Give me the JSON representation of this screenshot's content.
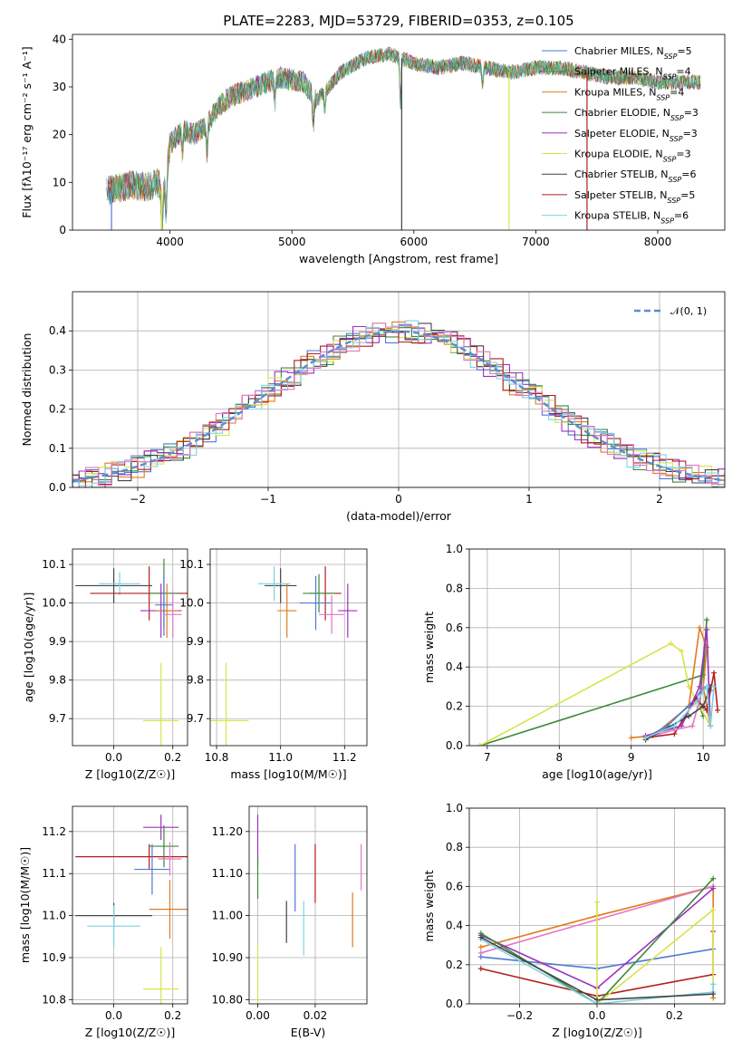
{
  "figure": {
    "title": "PLATE=2283, MJD=53729, FIBERID=0353, z=0.105"
  },
  "chart_data": [
    {
      "id": "spectrum",
      "type": "line",
      "xlabel": "wavelength [Angstrom, rest frame]",
      "ylabel": "Flux [fλ10⁻¹⁷ erg cm⁻² s⁻¹ A⁻¹]",
      "xlim": [
        3200,
        8550
      ],
      "ylim": [
        0,
        41
      ],
      "xticks": [
        4000,
        5000,
        6000,
        7000,
        8000
      ],
      "yticks": [
        0,
        10,
        20,
        30,
        40
      ],
      "grid": false,
      "legend_placement": "right",
      "continuum": {
        "x": [
          3480,
          3600,
          3700,
          3800,
          3900,
          3950,
          4000,
          4100,
          4200,
          4300,
          4400,
          4500,
          4700,
          4900,
          5100,
          5200,
          5400,
          5600,
          5800,
          5900,
          6000,
          6200,
          6400,
          6600,
          6800,
          7000,
          7200,
          7400,
          7600,
          7800,
          8000,
          8200,
          8350
        ],
        "y": [
          8,
          9,
          9.5,
          9,
          10,
          8,
          18,
          21,
          20,
          22,
          26,
          28,
          30,
          32,
          31,
          27,
          33,
          36,
          37,
          36,
          35,
          34,
          35,
          34,
          33,
          34,
          34,
          33,
          32,
          32,
          31,
          31,
          31
        ]
      },
      "series": [
        {
          "name": "Chabrier MILES, N_SSP=5",
          "color": "#4e79d6"
        },
        {
          "name": "Salpeter MILES, N_SSP=4",
          "color": "#2ca05a"
        },
        {
          "name": "Kroupa MILES, N_SSP=4",
          "color": "#e07b1c"
        },
        {
          "name": "Chabrier ELODIE, N_SSP=3",
          "color": "#3a8a3a"
        },
        {
          "name": "Salpeter ELODIE, N_SSP=3",
          "color": "#9b30c0"
        },
        {
          "name": "Kroupa ELODIE, N_SSP=3",
          "color": "#d8e34a"
        },
        {
          "name": "Chabrier STELIB, N_SSP=6",
          "color": "#444444"
        },
        {
          "name": "Salpeter STELIB, N_SSP=5",
          "color": "#b21e1e"
        },
        {
          "name": "Kroupa STELIB, N_SSP=6",
          "color": "#7dd3e0"
        }
      ]
    },
    {
      "id": "residuals",
      "type": "area",
      "xlabel": "(data-model)/error",
      "ylabel": "Normed distribution",
      "xlim": [
        -2.5,
        2.5
      ],
      "ylim": [
        0,
        0.5
      ],
      "xticks": [
        -2,
        -1,
        0,
        1,
        2
      ],
      "yticks": [
        0.0,
        0.1,
        0.2,
        0.3,
        0.4
      ],
      "grid": true,
      "legend_placement": "top-right",
      "legend": "𝒩(0, 1)",
      "gaussian_color": "#5b8bd6"
    },
    {
      "id": "age-vs-Z",
      "type": "scatter",
      "xlabel": "Z [log10(Z/Z☉)]",
      "ylabel": "age  [log10(age/yr)]",
      "xlim": [
        -0.14,
        0.25
      ],
      "ylim": [
        9.63,
        10.14
      ],
      "xticks": [
        0.0,
        0.2
      ],
      "yticks": [
        9.7,
        9.8,
        9.9,
        10.0,
        10.1
      ],
      "grid": true,
      "points": [
        {
          "x": 0.0,
          "y": 10.045,
          "xerr": 0.13,
          "yerr": 0.045,
          "color": "#444444"
        },
        {
          "x": 0.02,
          "y": 10.05,
          "xerr": 0.07,
          "yerr": 0.03,
          "color": "#7dd3e0"
        },
        {
          "x": 0.12,
          "y": 10.025,
          "xerr": 0.2,
          "yerr": 0.07,
          "color": "#b21e1e"
        },
        {
          "x": 0.17,
          "y": 10.025,
          "xerr": 0.05,
          "yerr": 0.09,
          "color": "#3a8a3a"
        },
        {
          "x": 0.16,
          "y": 9.98,
          "xerr": 0.07,
          "yerr": 0.07,
          "color": "#9b30c0"
        },
        {
          "x": 0.18,
          "y": 9.98,
          "xerr": 0.04,
          "yerr": 0.07,
          "color": "#e07b1c"
        },
        {
          "x": 0.17,
          "y": 9.995,
          "xerr": 0.03,
          "yerr": 0.08,
          "color": "#4e79d6"
        },
        {
          "x": 0.2,
          "y": 9.97,
          "xerr": 0.03,
          "yerr": 0.06,
          "color": "#e377c2"
        },
        {
          "x": 0.16,
          "y": 9.695,
          "xerr": 0.06,
          "yerr": 0.15,
          "color": "#d8e34a"
        }
      ]
    },
    {
      "id": "age-vs-mass",
      "type": "scatter",
      "xlabel": "mass [log10(M/M☉)]",
      "ylabel": "",
      "xlim": [
        10.78,
        11.27
      ],
      "ylim": [
        9.63,
        10.14
      ],
      "xticks": [
        10.8,
        11.0,
        11.2
      ],
      "yticks": [
        9.7,
        9.8,
        9.9,
        10.0,
        10.1
      ],
      "grid": true,
      "points": [
        {
          "x": 11.0,
          "y": 10.045,
          "xerr": 0.05,
          "yerr": 0.045,
          "color": "#444444"
        },
        {
          "x": 10.98,
          "y": 10.05,
          "xerr": 0.05,
          "yerr": 0.045,
          "color": "#7dd3e0"
        },
        {
          "x": 11.14,
          "y": 10.025,
          "xerr": 0.05,
          "yerr": 0.07,
          "color": "#b21e1e"
        },
        {
          "x": 11.12,
          "y": 10.025,
          "xerr": 0.05,
          "yerr": 0.05,
          "color": "#3a8a3a"
        },
        {
          "x": 11.21,
          "y": 9.98,
          "xerr": 0.03,
          "yerr": 0.07,
          "color": "#9b30c0"
        },
        {
          "x": 11.02,
          "y": 9.98,
          "xerr": 0.03,
          "yerr": 0.07,
          "color": "#e07b1c"
        },
        {
          "x": 11.11,
          "y": 10.0,
          "xerr": 0.05,
          "yerr": 0.07,
          "color": "#4e79d6"
        },
        {
          "x": 11.16,
          "y": 9.97,
          "xerr": 0.04,
          "yerr": 0.05,
          "color": "#e377c2"
        },
        {
          "x": 10.83,
          "y": 9.695,
          "xerr": 0.07,
          "yerr": 0.15,
          "color": "#d8e34a"
        }
      ]
    },
    {
      "id": "mass-weight-vs-age",
      "type": "line",
      "xlabel": "age  [log10(age/yr)]",
      "ylabel": "mass weight",
      "xlim": [
        6.75,
        10.3
      ],
      "ylim": [
        0,
        1.0
      ],
      "xticks": [
        7,
        8,
        9,
        10
      ],
      "yticks": [
        0.0,
        0.2,
        0.4,
        0.6,
        0.8,
        1.0
      ],
      "grid": true,
      "series": [
        {
          "color": "#3a8a3a",
          "x": [
            6.9,
            10.0,
            10.05,
            9.95,
            10.0
          ],
          "y": [
            0.0,
            0.36,
            0.64,
            0.2,
            0.15
          ]
        },
        {
          "color": "#d8e34a",
          "x": [
            6.9,
            9.55,
            9.7,
            9.8,
            10.1
          ],
          "y": [
            0.0,
            0.52,
            0.48,
            0.3,
            0.1
          ]
        },
        {
          "color": "#e07b1c",
          "x": [
            9.0,
            9.3,
            9.8,
            9.95,
            10.05,
            10.0,
            10.1
          ],
          "y": [
            0.04,
            0.05,
            0.2,
            0.6,
            0.5,
            0.3,
            0.1
          ]
        },
        {
          "color": "#4e79d6",
          "x": [
            9.2,
            9.5,
            9.9,
            10.0,
            10.1
          ],
          "y": [
            0.04,
            0.1,
            0.24,
            0.3,
            0.28
          ]
        },
        {
          "color": "#b21e1e",
          "x": [
            9.2,
            9.6,
            9.9,
            10.05,
            10.15,
            10.2
          ],
          "y": [
            0.04,
            0.06,
            0.24,
            0.18,
            0.37,
            0.18
          ]
        },
        {
          "color": "#9b30c0",
          "x": [
            9.2,
            9.7,
            9.95,
            10.05,
            10.1
          ],
          "y": [
            0.05,
            0.1,
            0.3,
            0.59,
            0.1
          ]
        },
        {
          "color": "#e377c2",
          "x": [
            9.2,
            9.6,
            9.85,
            10.0
          ],
          "y": [
            0.04,
            0.08,
            0.1,
            0.3
          ]
        },
        {
          "color": "#444444",
          "x": [
            9.2,
            9.8,
            10.0,
            10.1
          ],
          "y": [
            0.03,
            0.15,
            0.2,
            0.3
          ]
        },
        {
          "color": "#7dd3e0",
          "x": [
            9.2,
            9.6,
            9.9,
            10.05,
            10.1,
            10.15
          ],
          "y": [
            0.04,
            0.1,
            0.22,
            0.3,
            0.1,
            0.3
          ]
        }
      ]
    },
    {
      "id": "mass-vs-Z",
      "type": "scatter",
      "xlabel": "Z [log10(Z/Z☉)]",
      "ylabel": "mass [log10(M/M☉)]",
      "xlim": [
        -0.14,
        0.25
      ],
      "ylim": [
        10.79,
        11.26
      ],
      "xticks": [
        0.0,
        0.2
      ],
      "yticks": [
        10.8,
        10.9,
        11.0,
        11.1,
        11.2
      ],
      "grid": true,
      "points": [
        {
          "x": 0.0,
          "y": 11.0,
          "xerr": 0.13,
          "yerr": 0.03,
          "color": "#444444"
        },
        {
          "x": 0.0,
          "y": 10.975,
          "xerr": 0.09,
          "yerr": 0.05,
          "color": "#7dd3e0"
        },
        {
          "x": 0.12,
          "y": 11.14,
          "xerr": 0.25,
          "yerr": 0.03,
          "color": "#b21e1e"
        },
        {
          "x": 0.17,
          "y": 11.165,
          "xerr": 0.05,
          "yerr": 0.05,
          "color": "#3a8a3a"
        },
        {
          "x": 0.16,
          "y": 11.21,
          "xerr": 0.06,
          "yerr": 0.03,
          "color": "#9b30c0"
        },
        {
          "x": 0.19,
          "y": 11.015,
          "xerr": 0.07,
          "yerr": 0.07,
          "color": "#e07b1c"
        },
        {
          "x": 0.13,
          "y": 11.11,
          "xerr": 0.06,
          "yerr": 0.06,
          "color": "#4e79d6"
        },
        {
          "x": 0.19,
          "y": 11.135,
          "xerr": 0.04,
          "yerr": 0.04,
          "color": "#e377c2"
        },
        {
          "x": 0.16,
          "y": 10.825,
          "xerr": 0.06,
          "yerr": 0.1,
          "color": "#d8e34a"
        }
      ]
    },
    {
      "id": "mass-vs-ebv",
      "type": "scatter",
      "xlabel": "E(B-V)",
      "ylabel": "",
      "xlim": [
        -0.003,
        0.038
      ],
      "ylim": [
        10.79,
        11.26
      ],
      "xticks": [
        0.0,
        0.02
      ],
      "yticks": [
        10.8,
        10.9,
        11.0,
        11.1,
        11.2
      ],
      "grid": true,
      "points": [
        {
          "x": 0.0,
          "y": 11.18,
          "xerr": 0,
          "yerr": 0.06,
          "color": "#9b30c0"
        },
        {
          "x": 0.0,
          "y": 11.09,
          "xerr": 0,
          "yerr": 0.05,
          "color": "#3a8a3a"
        },
        {
          "x": 0.0,
          "y": 10.86,
          "xerr": 0,
          "yerr": 0.07,
          "color": "#d8e34a"
        },
        {
          "x": 0.01,
          "y": 10.985,
          "xerr": 0,
          "yerr": 0.05,
          "color": "#444444"
        },
        {
          "x": 0.013,
          "y": 11.09,
          "xerr": 0,
          "yerr": 0.08,
          "color": "#4e79d6"
        },
        {
          "x": 0.016,
          "y": 10.97,
          "xerr": 0,
          "yerr": 0.065,
          "color": "#7dd3e0"
        },
        {
          "x": 0.02,
          "y": 11.1,
          "xerr": 0,
          "yerr": 0.07,
          "color": "#b21e1e"
        },
        {
          "x": 0.033,
          "y": 10.99,
          "xerr": 0,
          "yerr": 0.065,
          "color": "#e07b1c"
        },
        {
          "x": 0.036,
          "y": 11.115,
          "xerr": 0,
          "yerr": 0.055,
          "color": "#e377c2"
        }
      ]
    },
    {
      "id": "mass-weight-vs-Z",
      "type": "line",
      "xlabel": "Z [log10(Z/Z☉)]",
      "ylabel": "mass weight",
      "xlim": [
        -0.33,
        0.33
      ],
      "ylim": [
        0,
        1.0
      ],
      "xticks": [
        -0.2,
        0.0,
        0.2
      ],
      "yticks": [
        0.0,
        0.2,
        0.4,
        0.6,
        0.8,
        1.0
      ],
      "grid": true,
      "series": [
        {
          "color": "#e07b1c",
          "x": [
            -0.3,
            0.0,
            0.3,
            0.3
          ],
          "y": [
            0.29,
            0.45,
            0.6,
            0.03
          ]
        },
        {
          "color": "#e377c2",
          "x": [
            -0.3,
            0.0,
            0.3
          ],
          "y": [
            0.26,
            0.43,
            0.6
          ]
        },
        {
          "color": "#4e79d6",
          "x": [
            -0.3,
            0.0,
            0.3
          ],
          "y": [
            0.24,
            0.18,
            0.28
          ]
        },
        {
          "color": "#b21e1e",
          "x": [
            -0.3,
            0.0,
            0.3,
            0.3
          ],
          "y": [
            0.18,
            0.04,
            0.15,
            0.37
          ]
        },
        {
          "color": "#9b30c0",
          "x": [
            -0.3,
            0.0,
            0.3
          ],
          "y": [
            0.35,
            0.08,
            0.59
          ]
        },
        {
          "color": "#3a8a3a",
          "x": [
            -0.3,
            0.0,
            0.3
          ],
          "y": [
            0.36,
            0.0,
            0.64
          ]
        },
        {
          "color": "#d8e34a",
          "x": [
            0.0,
            0.0,
            0.3,
            0.3
          ],
          "y": [
            0.52,
            0.0,
            0.48,
            0.1
          ]
        },
        {
          "color": "#7dd3e0",
          "x": [
            -0.3,
            0.0,
            0.3,
            0.3
          ],
          "y": [
            0.33,
            0.0,
            0.06,
            0.1
          ]
        },
        {
          "color": "#444444",
          "x": [
            -0.3,
            0.0,
            0.3
          ],
          "y": [
            0.34,
            0.02,
            0.05
          ]
        }
      ]
    }
  ]
}
